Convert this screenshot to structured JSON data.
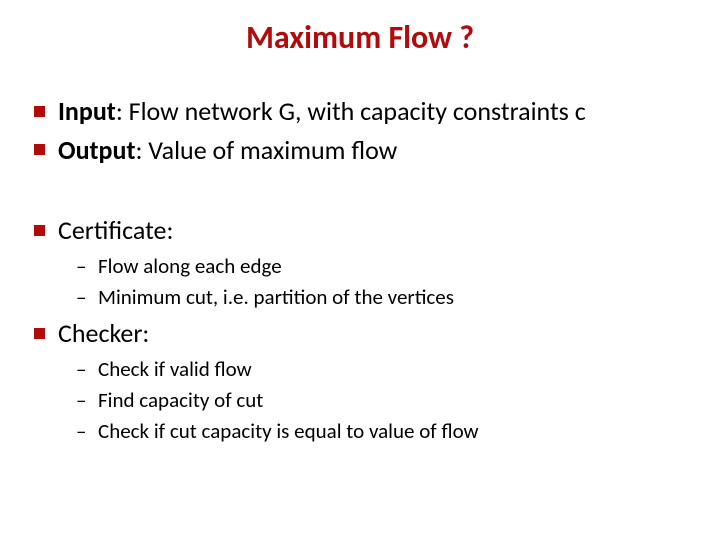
{
  "title": {
    "text": "Maximum Flow ?",
    "color": "#b10c0c",
    "fontsize": 32
  },
  "bullet_color": "#b10c0c",
  "body_fontsize_lvl1": 26,
  "body_fontsize_lvl2": 21,
  "text_color": "#000000",
  "background_color": "#ffffff",
  "blocks": [
    {
      "items": [
        {
          "label": "Input",
          "rest": ": Flow network G, with capacity constraints c"
        },
        {
          "label": "Output",
          "rest": ": Value of maximum flow"
        }
      ]
    },
    {
      "items": [
        {
          "label": "Certificate:",
          "rest": "",
          "sub": [
            "Flow along each edge",
            "Minimum cut, i.e. partition of the vertices"
          ]
        },
        {
          "label": "Checker:",
          "rest": "",
          "sub": [
            "Check if valid flow",
            "Find capacity of cut",
            "Check if cut capacity is equal to value of flow"
          ]
        }
      ]
    }
  ]
}
